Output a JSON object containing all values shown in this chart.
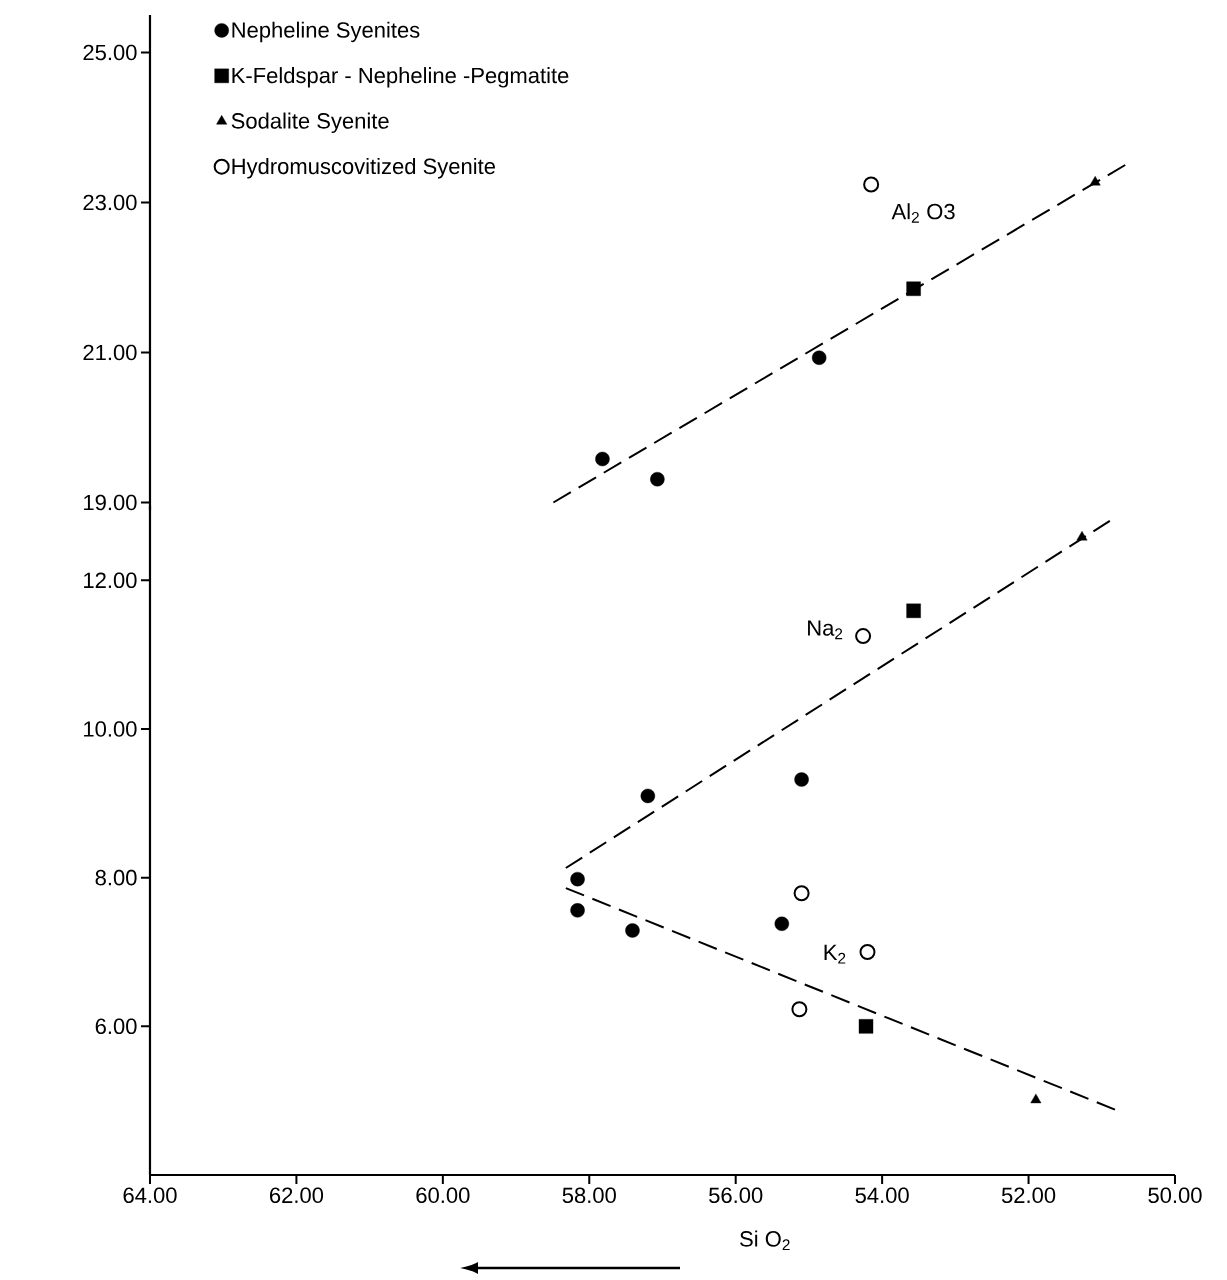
{
  "chart_data": [
    {
      "type": "scatter",
      "xlim": [
        64,
        50
      ],
      "ylim": [
        18.9,
        25.5
      ],
      "tick_labels": "y",
      "legend": "top left",
      "grid": false,
      "line_style": "dashed",
      "yticks": [
        {
          "value": 19,
          "label": "19.00"
        },
        {
          "value": 21,
          "label": "21.00"
        },
        {
          "value": 23,
          "label": "23.00"
        },
        {
          "value": 25,
          "label": "25.00"
        }
      ],
      "annotations": [
        "Al$_{2}$ O3"
      ],
      "series": [
        {
          "name": "Nepheline Syenites",
          "color": "#000000",
          "marker": "circle",
          "x": [
            57.82,
            57.07,
            54.86
          ],
          "values": [
            19.58,
            19.31,
            20.93
          ]
        },
        {
          "name": "K-Feldspar - Nepheline -Pegmatite",
          "color": "#000000",
          "marker": "square",
          "x": [
            53.57
          ],
          "values": [
            21.85
          ]
        },
        {
          "name": "Sodalite Syenite",
          "color": "#000000",
          "marker": "triangle",
          "x": [
            51.09
          ],
          "values": [
            23.27
          ]
        },
        {
          "name": "Hydromuscovitized Syenite",
          "color": "#000000",
          "marker": "circle-open",
          "x": [
            54.15
          ],
          "values": [
            23.24
          ]
        },
        {
          "type": "line",
          "color": "#000000",
          "x": [
            58.49,
            50.68
          ],
          "values": [
            19.0,
            23.5
          ]
        }
      ]
    },
    {
      "type": "scatter",
      "xlim": [
        64,
        50
      ],
      "ylim": [
        4,
        13
      ],
      "grid": false,
      "line_style": "dashed",
      "xlabel": "Si O$_{2}$",
      "xticks": [
        {
          "value": 64,
          "label": "64.00"
        },
        {
          "value": 62,
          "label": "62.00"
        },
        {
          "value": 60,
          "label": "60.00"
        },
        {
          "value": 58,
          "label": "58.00"
        },
        {
          "value": 56,
          "label": "56.00"
        },
        {
          "value": 54,
          "label": "54.00"
        },
        {
          "value": 52,
          "label": "52.00"
        },
        {
          "value": 50,
          "label": "50.00"
        }
      ],
      "yticks": [
        {
          "value": 6,
          "label": "6.00"
        },
        {
          "value": 8,
          "label": "8.00"
        },
        {
          "value": 10,
          "label": "10.00"
        },
        {
          "value": 12,
          "label": "12.00"
        }
      ],
      "annotations": [
        "Na$_{2}$",
        "K$_{2}$"
      ],
      "series": [
        {
          "color": "#000000",
          "marker": "circle",
          "x": [
            57.2,
            55.1,
            58.16,
            58.16,
            57.41,
            55.37
          ],
          "values": [
            9.1,
            9.32,
            7.98,
            7.56,
            7.29,
            7.38
          ]
        },
        {
          "color": "#000000",
          "marker": "square",
          "x": [
            53.57,
            54.22
          ],
          "values": [
            11.59,
            6.0
          ]
        },
        {
          "color": "#000000",
          "marker": "triangle",
          "x": [
            51.27,
            51.9
          ],
          "values": [
            12.58,
            5.01
          ]
        },
        {
          "color": "#000000",
          "marker": "circle-open",
          "x": [
            54.26,
            55.1,
            54.2,
            55.13
          ],
          "values": [
            11.25,
            7.79,
            7.0,
            6.23
          ]
        },
        {
          "type": "line",
          "color": "#000000",
          "x": [
            58.32,
            50.89
          ],
          "values": [
            8.13,
            12.8
          ]
        },
        {
          "type": "line",
          "color": "#000000",
          "x": [
            58.32,
            50.82
          ],
          "values": [
            7.86,
            4.88
          ]
        }
      ]
    }
  ]
}
